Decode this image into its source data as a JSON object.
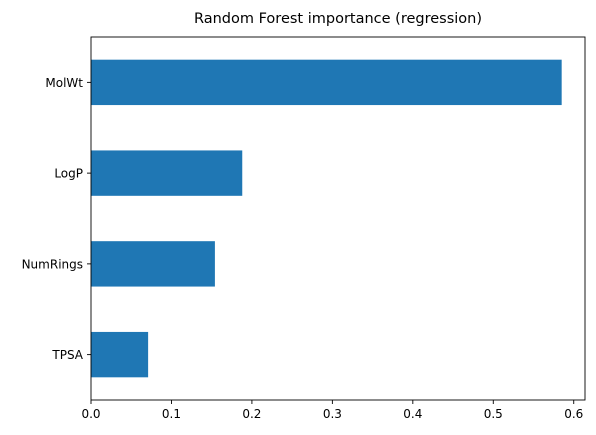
{
  "chart_data": {
    "type": "bar",
    "orientation": "horizontal",
    "title": "Random Forest importance (regression)",
    "xlabel": "",
    "ylabel": "",
    "categories": [
      "MolWt",
      "LogP",
      "NumRings",
      "TPSA"
    ],
    "values": [
      0.585,
      0.188,
      0.154,
      0.071
    ],
    "xlim": [
      0,
      0.614
    ],
    "xticks": [
      0.0,
      0.1,
      0.2,
      0.3,
      0.4,
      0.5,
      0.6
    ],
    "xtick_labels": [
      "0.0",
      "0.1",
      "0.2",
      "0.3",
      "0.4",
      "0.5",
      "0.6"
    ],
    "grid": false,
    "legend": "none",
    "bar_color": "#1f77b4"
  }
}
